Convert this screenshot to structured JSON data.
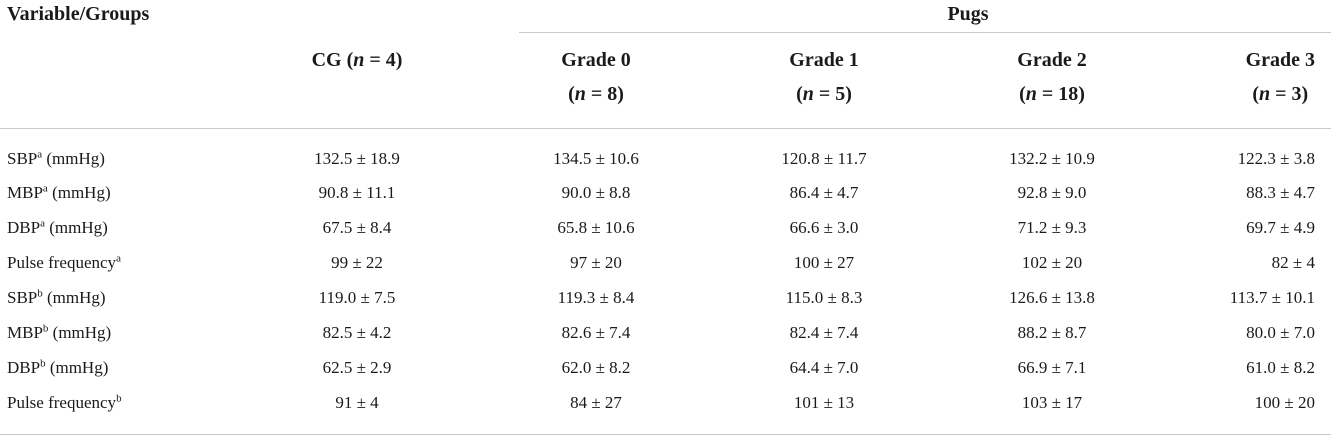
{
  "table": {
    "header": {
      "stub": "Variable/Groups",
      "pugs": "Pugs",
      "cg": {
        "label": "CG (",
        "n_var": "n",
        "n_rest": " = 4)"
      },
      "grades": [
        {
          "label": "Grade 0",
          "n_open": "(",
          "n_var": "n",
          "n_rest": " = 8)"
        },
        {
          "label": "Grade 1",
          "n_open": "(",
          "n_var": "n",
          "n_rest": " = 5)"
        },
        {
          "label": "Grade 2",
          "n_open": "(",
          "n_var": "n",
          "n_rest": " = 18)"
        },
        {
          "label": "Grade 3",
          "n_open": "(",
          "n_var": "n",
          "n_rest": " = 3)"
        }
      ]
    },
    "rows": [
      {
        "name": "SBP",
        "sup": "a",
        "unit": " (mmHg)",
        "cells": [
          "132.5 ± 18.9",
          "134.5 ± 10.6",
          "120.8 ± 11.7",
          "132.2 ± 10.9",
          "122.3 ± 3.8"
        ]
      },
      {
        "name": "MBP",
        "sup": "a",
        "unit": " (mmHg)",
        "cells": [
          "90.8 ± 11.1",
          "90.0 ± 8.8",
          "86.4 ± 4.7",
          "92.8 ± 9.0",
          "88.3 ± 4.7"
        ]
      },
      {
        "name": "DBP",
        "sup": "a",
        "unit": " (mmHg)",
        "cells": [
          "67.5 ± 8.4",
          "65.8 ± 10.6",
          "66.6 ± 3.0",
          "71.2 ± 9.3",
          "69.7 ± 4.9"
        ]
      },
      {
        "name": "Pulse frequency",
        "sup": "a",
        "unit": "",
        "cells": [
          "99 ± 22",
          "97 ± 20",
          "100 ± 27",
          "102 ± 20",
          "82 ± 4"
        ]
      },
      {
        "name": "SBP",
        "sup": "b",
        "unit": " (mmHg)",
        "cells": [
          "119.0 ± 7.5",
          "119.3 ± 8.4",
          "115.0 ± 8.3",
          "126.6 ± 13.8",
          "113.7 ± 10.1"
        ]
      },
      {
        "name": "MBP",
        "sup": "b",
        "unit": " (mmHg)",
        "cells": [
          "82.5 ± 4.2",
          "82.6 ± 7.4",
          "82.4 ± 7.4",
          "88.2 ± 8.7",
          "80.0 ± 7.0"
        ]
      },
      {
        "name": "DBP",
        "sup": "b",
        "unit": " (mmHg)",
        "cells": [
          "62.5 ± 2.9",
          "62.0 ± 8.2",
          "64.4 ± 7.0",
          "66.9 ± 7.1",
          "61.0 ± 8.2"
        ]
      },
      {
        "name": "Pulse frequency",
        "sup": "b",
        "unit": "",
        "cells": [
          "91 ± 4",
          "84 ± 27",
          "101 ± 13",
          "103 ± 17",
          "100 ± 20"
        ]
      }
    ]
  }
}
